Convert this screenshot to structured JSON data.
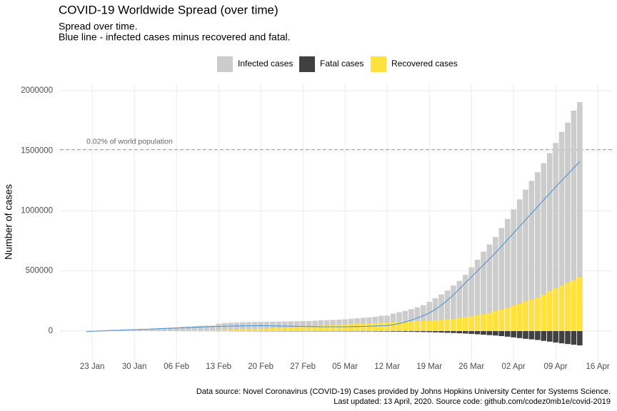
{
  "chart_data": {
    "type": "bar",
    "title": "COVID-19 Worldwide Spread (over time)",
    "subtitle": [
      "Spread over time.",
      "Blue line - infected cases minus recovered and fatal."
    ],
    "caption": [
      "Data source: Novel Coronavirus (COVID-19) Cases provided by Johns Hopkins University Center for Systems Science.",
      "Last updated: 13 April, 2020. Source code: github.com/codez0mb1e/covid-2019"
    ],
    "y_label": "Number of cases",
    "x": [
      "01-22",
      "01-23",
      "01-24",
      "01-25",
      "01-26",
      "01-27",
      "01-28",
      "01-29",
      "01-30",
      "01-31",
      "02-01",
      "02-02",
      "02-03",
      "02-04",
      "02-05",
      "02-06",
      "02-07",
      "02-08",
      "02-09",
      "02-10",
      "02-11",
      "02-12",
      "02-13",
      "02-14",
      "02-15",
      "02-16",
      "02-17",
      "02-18",
      "02-19",
      "02-20",
      "02-21",
      "02-22",
      "02-23",
      "02-24",
      "02-25",
      "02-26",
      "02-27",
      "02-28",
      "02-29",
      "03-01",
      "03-02",
      "03-03",
      "03-04",
      "03-05",
      "03-06",
      "03-07",
      "03-08",
      "03-09",
      "03-10",
      "03-11",
      "03-12",
      "03-13",
      "03-14",
      "03-15",
      "03-16",
      "03-17",
      "03-18",
      "03-19",
      "03-20",
      "03-21",
      "03-22",
      "03-23",
      "03-24",
      "03-25",
      "03-26",
      "03-27",
      "03-28",
      "03-29",
      "03-30",
      "03-31",
      "04-01",
      "04-02",
      "04-03",
      "04-04",
      "04-05",
      "04-06",
      "04-07",
      "04-08",
      "04-09",
      "04-10",
      "04-11",
      "04-12",
      "04-13"
    ],
    "series": [
      {
        "name": "Infected cases",
        "color": "#cccccc",
        "values": [
          555,
          654,
          941,
          1434,
          2118,
          2927,
          5578,
          6166,
          8234,
          9927,
          12038,
          16787,
          19881,
          23892,
          27635,
          30794,
          34391,
          37120,
          40150,
          42762,
          44802,
          45221,
          60368,
          66885,
          69030,
          71224,
          73258,
          75136,
          75639,
          76197,
          76819,
          78572,
          78958,
          79561,
          80406,
          81388,
          82746,
          84112,
          86011,
          88369,
          90306,
          92840,
          95120,
          97886,
          101801,
          105847,
          109821,
          113590,
          118620,
          125875,
          128352,
          145205,
          156101,
          167454,
          181574,
          197102,
          214821,
          242570,
          272208,
          304507,
          336953,
          378235,
          418045,
          467653,
          529591,
          593291,
          660706,
          720117,
          782365,
          857487,
          932605,
          1013157,
          1095917,
          1176060,
          1249754,
          1321481,
          1396476,
          1480202,
          1565278,
          1657526,
          1735650,
          1834721,
          1904838
        ]
      },
      {
        "name": "Fatal cases",
        "color": "#404040",
        "values": [
          -17,
          -18,
          -26,
          -42,
          -56,
          -82,
          -131,
          -133,
          -171,
          -213,
          -259,
          -362,
          -426,
          -492,
          -564,
          -634,
          -719,
          -806,
          -906,
          -1013,
          -1113,
          -1118,
          -1371,
          -1523,
          -1666,
          -1770,
          -1868,
          -2007,
          -2122,
          -2247,
          -2251,
          -2458,
          -2469,
          -2629,
          -2708,
          -2770,
          -2814,
          -2872,
          -2941,
          -2996,
          -3085,
          -3160,
          -3254,
          -3348,
          -3460,
          -3558,
          -3802,
          -3988,
          -4262,
          -4615,
          -4720,
          -5404,
          -5819,
          -6440,
          -7126,
          -7905,
          -8733,
          -9867,
          -11299,
          -12973,
          -14651,
          -16505,
          -18625,
          -21181,
          -23970,
          -27198,
          -30652,
          -33925,
          -37582,
          -42107,
          -47180,
          -52983,
          -58787,
          -64606,
          -69374,
          -74565,
          -81865,
          -88338,
          -95455,
          -102525,
          -108503,
          -114091,
          -119482
        ]
      },
      {
        "name": "Recovered cases",
        "color": "#ffe23e",
        "values": [
          28,
          30,
          36,
          39,
          52,
          61,
          107,
          126,
          143,
          222,
          284,
          472,
          623,
          852,
          1124,
          1487,
          2011,
          2616,
          3244,
          3946,
          4683,
          5150,
          6295,
          8058,
          9395,
          10865,
          12583,
          14352,
          16121,
          18177,
          18890,
          22886,
          23394,
          25227,
          27905,
          30384,
          33277,
          36711,
          39782,
          42716,
          45602,
          48228,
          51170,
          53796,
          55865,
          58358,
          60694,
          62494,
          64404,
          67003,
          68324,
          70251,
          72624,
          76034,
          78088,
          80840,
          83207,
          84854,
          87256,
          91499,
          97704,
          98334,
          107890,
          113604,
          122150,
          130915,
          139415,
          149082,
          164566,
          178034,
          193177,
          210263,
          225796,
          246152,
          260012,
          276515,
          300054,
          328661,
          353975,
          376096,
          402110,
          421722,
          448655
        ]
      }
    ],
    "line": {
      "color": "#4f94d4",
      "values": [
        -5000,
        -2000,
        0,
        2000,
        4000,
        6000,
        8000,
        10000,
        12000,
        13000,
        15000,
        17000,
        19000,
        21000,
        23000,
        25000,
        27000,
        29000,
        31000,
        33000,
        35000,
        37000,
        38000,
        40000,
        41000,
        42000,
        43000,
        44000,
        44000,
        45000,
        44000,
        43000,
        42000,
        41000,
        40000,
        39000,
        38000,
        37000,
        36000,
        35000,
        35000,
        35000,
        35000,
        35000,
        36000,
        37000,
        38000,
        40000,
        42000,
        44000,
        45000,
        52000,
        62000,
        75000,
        90000,
        108000,
        128000,
        150000,
        180000,
        215000,
        255000,
        300000,
        350000,
        400000,
        450000,
        500000,
        550000,
        600000,
        652000,
        705000,
        760000,
        815000,
        870000,
        925000,
        980000,
        1035000,
        1090000,
        1145000,
        1200000,
        1252000,
        1305000,
        1358000,
        1410000
      ]
    },
    "reference_line": {
      "value": 1510000,
      "label": "0.02% of world population"
    },
    "xlim": [
      "01-18",
      "04-18"
    ],
    "xticks": [
      {
        "value": "01-23",
        "label": "23 Jan"
      },
      {
        "value": "01-30",
        "label": "30 Jan"
      },
      {
        "value": "02-06",
        "label": "06 Feb"
      },
      {
        "value": "02-13",
        "label": "13 Feb"
      },
      {
        "value": "02-20",
        "label": "20 Feb"
      },
      {
        "value": "02-27",
        "label": "27 Feb"
      },
      {
        "value": "03-05",
        "label": "05 Mar"
      },
      {
        "value": "03-12",
        "label": "12 Mar"
      },
      {
        "value": "03-19",
        "label": "19 Mar"
      },
      {
        "value": "03-26",
        "label": "26 Mar"
      },
      {
        "value": "04-02",
        "label": "02 Apr"
      },
      {
        "value": "04-09",
        "label": "09 Apr"
      },
      {
        "value": "04-16",
        "label": "16 Apr"
      }
    ],
    "ylim": [
      -250000,
      2060000
    ],
    "yticks": [
      0,
      500000,
      1000000,
      1500000,
      2000000
    ],
    "grid": true
  }
}
